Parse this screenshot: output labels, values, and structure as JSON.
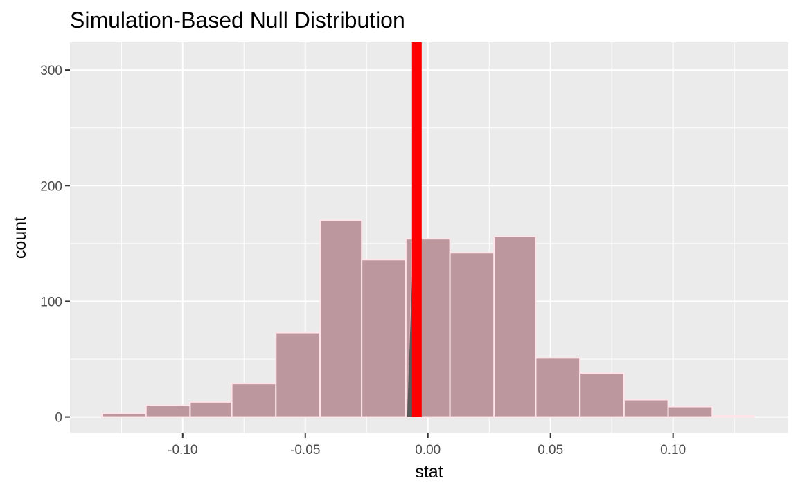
{
  "chart_data": {
    "type": "bar",
    "title": "Simulation-Based Null Distribution",
    "xlabel": "stat",
    "ylabel": "count",
    "xlim": [
      -0.146,
      0.147
    ],
    "ylim": [
      -14,
      324
    ],
    "x_ticks": [
      -0.1,
      -0.05,
      0.0,
      0.05,
      0.1
    ],
    "x_tick_labels": [
      "-0.10",
      "-0.05",
      "0.00",
      "0.05",
      "0.10"
    ],
    "y_ticks": [
      0,
      100,
      200,
      300
    ],
    "y_tick_labels": [
      "0",
      "100",
      "200",
      "300"
    ],
    "grid": true,
    "bins": [
      {
        "x0": -0.133,
        "x1": -0.115,
        "count": 3
      },
      {
        "x0": -0.115,
        "x1": -0.097,
        "count": 10
      },
      {
        "x0": -0.097,
        "x1": -0.08,
        "count": 13
      },
      {
        "x0": -0.08,
        "x1": -0.062,
        "count": 29
      },
      {
        "x0": -0.062,
        "x1": -0.044,
        "count": 73
      },
      {
        "x0": -0.044,
        "x1": -0.027,
        "count": 170
      },
      {
        "x0": -0.027,
        "x1": -0.009,
        "count": 136
      },
      {
        "x0": -0.009,
        "x1": 0.009,
        "count": 154
      },
      {
        "x0": 0.009,
        "x1": 0.027,
        "count": 142
      },
      {
        "x0": 0.027,
        "x1": 0.044,
        "count": 156
      },
      {
        "x0": 0.044,
        "x1": 0.062,
        "count": 51
      },
      {
        "x0": 0.062,
        "x1": 0.08,
        "count": 38
      },
      {
        "x0": 0.08,
        "x1": 0.098,
        "count": 15
      },
      {
        "x0": 0.098,
        "x1": 0.116,
        "count": 9
      },
      {
        "x0": 0.116,
        "x1": 0.133,
        "count": 1
      }
    ],
    "observed_stat": -0.0045,
    "colors": {
      "bar_fill": "#bc979d",
      "bar_outline": "#ffe4ea",
      "observed_line": "#ff0000",
      "shade_dark": "#5a5a5a",
      "shade_light": "#ffd3dc",
      "panel": "#ebebeb",
      "grid": "#ffffff"
    }
  }
}
